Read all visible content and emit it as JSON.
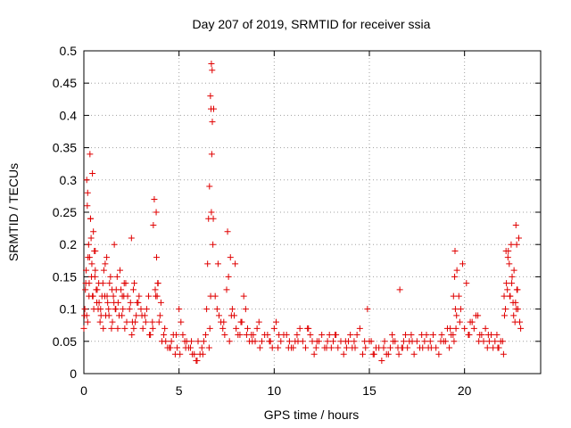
{
  "chart_data": {
    "type": "scatter",
    "title": "Day 207 of 2019, SRMTID for receiver ssia",
    "xlabel": "GPS time / hours",
    "ylabel": "SRMTID / TECUs",
    "xlim": [
      0,
      24
    ],
    "ylim": [
      0,
      0.5
    ],
    "xticks": [
      0,
      5,
      10,
      15,
      20
    ],
    "xtick_labels": [
      "0",
      "5",
      "10",
      "15",
      "20"
    ],
    "yticks": [
      0,
      0.05,
      0.1,
      0.15,
      0.2,
      0.25,
      0.3,
      0.35,
      0.4,
      0.45,
      0.5
    ],
    "ytick_labels": [
      "0",
      "0.05",
      "0.1",
      "0.15",
      "0.2",
      "0.25",
      "0.3",
      "0.35",
      "0.4",
      "0.45",
      "0.5"
    ],
    "grid": true,
    "marker": "plus",
    "color": "#e00000",
    "x": [
      0.0,
      0.05,
      0.1,
      0.15,
      0.2,
      0.25,
      0.3,
      0.35,
      0.4,
      0.45,
      0.5,
      0.55,
      0.6,
      0.7,
      0.8,
      0.9,
      1.0,
      1.1,
      1.2,
      1.3,
      1.4,
      1.5,
      1.6,
      1.7,
      1.8,
      1.9,
      2.0,
      2.1,
      2.2,
      2.4,
      2.5,
      2.6,
      2.7,
      2.8,
      3.0,
      3.2,
      3.4,
      3.6,
      3.7,
      3.8,
      3.9,
      4.0,
      4.2,
      4.4,
      4.6,
      4.8,
      5.0,
      5.2,
      5.4,
      5.6,
      5.8,
      6.0,
      6.2,
      6.4,
      6.5,
      6.6,
      6.65,
      6.7,
      6.75,
      6.8,
      7.0,
      7.2,
      7.4,
      7.5,
      7.6,
      7.8,
      8.0,
      8.2,
      8.4,
      8.6,
      8.8,
      9.0,
      9.2,
      9.5,
      9.8,
      10.0,
      10.2,
      10.5,
      10.8,
      11.0,
      11.2,
      11.5,
      11.8,
      12.0,
      12.2,
      12.5,
      12.8,
      13.0,
      13.2,
      13.5,
      13.8,
      14.0,
      14.2,
      14.5,
      14.8,
      15.0,
      15.2,
      15.5,
      15.8,
      16.0,
      16.2,
      16.5,
      16.6,
      16.8,
      17.0,
      17.2,
      17.5,
      17.8,
      18.0,
      18.2,
      18.5,
      18.8,
      19.0,
      19.2,
      19.4,
      19.5,
      19.6,
      19.8,
      20.0,
      20.2,
      20.4,
      20.6,
      20.8,
      21.0,
      21.2,
      21.4,
      21.6,
      21.8,
      22.0,
      22.1,
      22.2,
      22.3,
      22.4,
      22.5,
      22.6,
      22.7,
      22.8,
      22.9,
      0.08,
      0.12,
      0.18,
      0.22,
      0.28,
      0.32,
      0.38,
      0.42,
      0.48,
      0.52,
      0.58,
      0.65,
      0.75,
      0.85,
      0.95,
      1.05,
      1.15,
      1.25,
      1.35,
      1.45,
      1.55,
      1.65,
      1.75,
      1.85,
      1.95,
      2.05,
      2.15,
      2.3,
      2.45,
      2.55,
      2.65,
      2.75,
      2.9,
      3.1,
      3.3,
      3.5,
      3.65,
      3.75,
      3.85,
      3.95,
      4.1,
      4.3,
      4.5,
      4.7,
      4.9,
      5.1,
      5.3,
      5.5,
      5.7,
      5.9,
      6.1,
      6.3,
      6.45,
      6.55,
      6.68,
      6.72,
      6.78,
      6.9,
      7.1,
      7.3,
      7.55,
      7.7,
      7.9,
      8.1,
      8.3,
      8.5,
      8.7,
      8.9,
      9.1,
      9.35,
      9.65,
      9.9,
      10.1,
      10.35,
      10.65,
      10.9,
      11.1,
      11.35,
      11.65,
      11.9,
      12.1,
      12.35,
      12.65,
      12.9,
      13.1,
      13.35,
      13.65,
      13.9,
      14.1,
      14.35,
      14.65,
      14.9,
      15.1,
      15.35,
      15.65,
      15.9,
      16.1,
      16.35,
      16.55,
      16.7,
      16.9,
      17.1,
      17.35,
      17.65,
      17.9,
      18.1,
      18.35,
      18.65,
      18.9,
      19.1,
      19.3,
      19.45,
      19.55,
      19.7,
      19.9,
      20.1,
      20.3,
      20.5,
      20.7,
      20.9,
      21.1,
      21.3,
      21.5,
      21.7,
      21.9,
      22.05,
      22.15,
      22.25,
      22.35,
      22.45,
      22.55,
      22.65,
      22.75,
      22.85,
      22.95,
      0.03,
      0.15,
      0.2,
      0.27,
      0.35,
      0.45,
      0.6,
      0.68,
      0.78,
      0.88,
      1.02,
      1.12,
      1.22,
      1.32,
      1.48,
      1.58,
      1.68,
      1.78,
      2.02,
      2.12,
      2.25,
      2.52,
      2.62,
      2.85,
      3.05,
      3.25,
      3.45,
      3.62,
      3.78,
      3.82,
      3.88,
      4.05,
      4.25,
      4.55,
      4.85,
      5.05,
      5.35,
      5.65,
      5.95,
      6.25,
      6.58,
      6.62,
      6.66,
      6.7,
      6.74,
      6.82,
      7.05,
      7.35,
      7.65,
      7.75,
      7.95,
      8.25,
      8.55,
      8.85,
      9.25,
      9.75,
      10.25,
      10.75,
      11.25,
      11.75,
      12.25,
      12.75,
      13.25,
      13.75,
      14.25,
      14.75,
      15.25,
      15.75,
      16.25,
      16.75,
      17.25,
      17.75,
      18.25,
      18.75,
      19.25,
      19.42,
      19.48,
      19.52,
      19.58,
      19.75,
      20.25,
      20.75,
      21.25,
      21.75,
      22.08,
      22.18,
      22.28,
      22.38,
      22.48,
      22.58,
      22.68,
      22.78,
      22.72,
      22.74
    ],
    "y": [
      0.07,
      0.1,
      0.14,
      0.3,
      0.28,
      0.2,
      0.18,
      0.24,
      0.15,
      0.12,
      0.22,
      0.19,
      0.16,
      0.13,
      0.11,
      0.09,
      0.14,
      0.12,
      0.18,
      0.1,
      0.15,
      0.08,
      0.2,
      0.13,
      0.11,
      0.16,
      0.09,
      0.12,
      0.14,
      0.1,
      0.21,
      0.13,
      0.08,
      0.11,
      0.1,
      0.09,
      0.12,
      0.08,
      0.27,
      0.25,
      0.14,
      0.09,
      0.06,
      0.04,
      0.05,
      0.03,
      0.1,
      0.06,
      0.05,
      0.04,
      0.03,
      0.05,
      0.04,
      0.06,
      0.17,
      0.29,
      0.43,
      0.48,
      0.39,
      0.24,
      0.1,
      0.08,
      0.06,
      0.13,
      0.15,
      0.1,
      0.07,
      0.06,
      0.12,
      0.07,
      0.06,
      0.05,
      0.08,
      0.06,
      0.05,
      0.07,
      0.04,
      0.06,
      0.05,
      0.04,
      0.06,
      0.05,
      0.07,
      0.05,
      0.04,
      0.06,
      0.05,
      0.04,
      0.06,
      0.05,
      0.04,
      0.06,
      0.05,
      0.07,
      0.04,
      0.05,
      0.03,
      0.04,
      0.05,
      0.03,
      0.06,
      0.04,
      0.13,
      0.05,
      0.04,
      0.06,
      0.05,
      0.04,
      0.06,
      0.05,
      0.04,
      0.06,
      0.05,
      0.04,
      0.06,
      0.19,
      0.16,
      0.1,
      0.07,
      0.06,
      0.08,
      0.09,
      0.06,
      0.05,
      0.04,
      0.06,
      0.05,
      0.04,
      0.05,
      0.09,
      0.14,
      0.19,
      0.12,
      0.15,
      0.16,
      0.23,
      0.1,
      0.08,
      0.13,
      0.16,
      0.26,
      0.18,
      0.14,
      0.34,
      0.21,
      0.17,
      0.12,
      0.1,
      0.15,
      0.13,
      0.1,
      0.08,
      0.12,
      0.16,
      0.09,
      0.11,
      0.14,
      0.07,
      0.12,
      0.1,
      0.15,
      0.09,
      0.13,
      0.1,
      0.07,
      0.12,
      0.11,
      0.08,
      0.14,
      0.09,
      0.12,
      0.07,
      0.1,
      0.06,
      0.23,
      0.13,
      0.12,
      0.08,
      0.05,
      0.05,
      0.04,
      0.06,
      0.04,
      0.08,
      0.05,
      0.04,
      0.03,
      0.02,
      0.03,
      0.05,
      0.1,
      0.24,
      0.41,
      0.34,
      0.2,
      0.12,
      0.09,
      0.07,
      0.22,
      0.18,
      0.09,
      0.06,
      0.08,
      0.1,
      0.05,
      0.06,
      0.07,
      0.05,
      0.06,
      0.04,
      0.08,
      0.05,
      0.06,
      0.04,
      0.05,
      0.07,
      0.04,
      0.06,
      0.03,
      0.05,
      0.04,
      0.06,
      0.05,
      0.04,
      0.03,
      0.05,
      0.04,
      0.06,
      0.03,
      0.1,
      0.05,
      0.04,
      0.02,
      0.03,
      0.04,
      0.05,
      0.03,
      0.04,
      0.06,
      0.05,
      0.03,
      0.04,
      0.05,
      0.04,
      0.06,
      0.03,
      0.05,
      0.07,
      0.06,
      0.05,
      0.07,
      0.12,
      0.17,
      0.14,
      0.08,
      0.07,
      0.09,
      0.06,
      0.07,
      0.05,
      0.04,
      0.06,
      0.05,
      0.03,
      0.1,
      0.13,
      0.17,
      0.2,
      0.11,
      0.08,
      0.13,
      0.21,
      0.07,
      0.09,
      0.09,
      0.08,
      0.12,
      0.24,
      0.31,
      0.19,
      0.11,
      0.14,
      0.1,
      0.07,
      0.17,
      0.12,
      0.09,
      0.13,
      0.11,
      0.1,
      0.07,
      0.12,
      0.14,
      0.08,
      0.06,
      0.07,
      0.11,
      0.09,
      0.08,
      0.06,
      0.07,
      0.12,
      0.18,
      0.14,
      0.11,
      0.07,
      0.04,
      0.06,
      0.03,
      0.04,
      0.05,
      0.02,
      0.03,
      0.04,
      0.07,
      0.12,
      0.25,
      0.47,
      0.41,
      0.17,
      0.08,
      0.05,
      0.09,
      0.17,
      0.08,
      0.06,
      0.05,
      0.04,
      0.05,
      0.06,
      0.04,
      0.05,
      0.07,
      0.05,
      0.04,
      0.06,
      0.05,
      0.04,
      0.05,
      0.03,
      0.04,
      0.05,
      0.04,
      0.05,
      0.06,
      0.04,
      0.05,
      0.07,
      0.12,
      0.15,
      0.1,
      0.09,
      0.08,
      0.06,
      0.05,
      0.06,
      0.04,
      0.12,
      0.19,
      0.18,
      0.12,
      0.14,
      0.09,
      0.11,
      0.13,
      0.1,
      0.2
    ]
  }
}
